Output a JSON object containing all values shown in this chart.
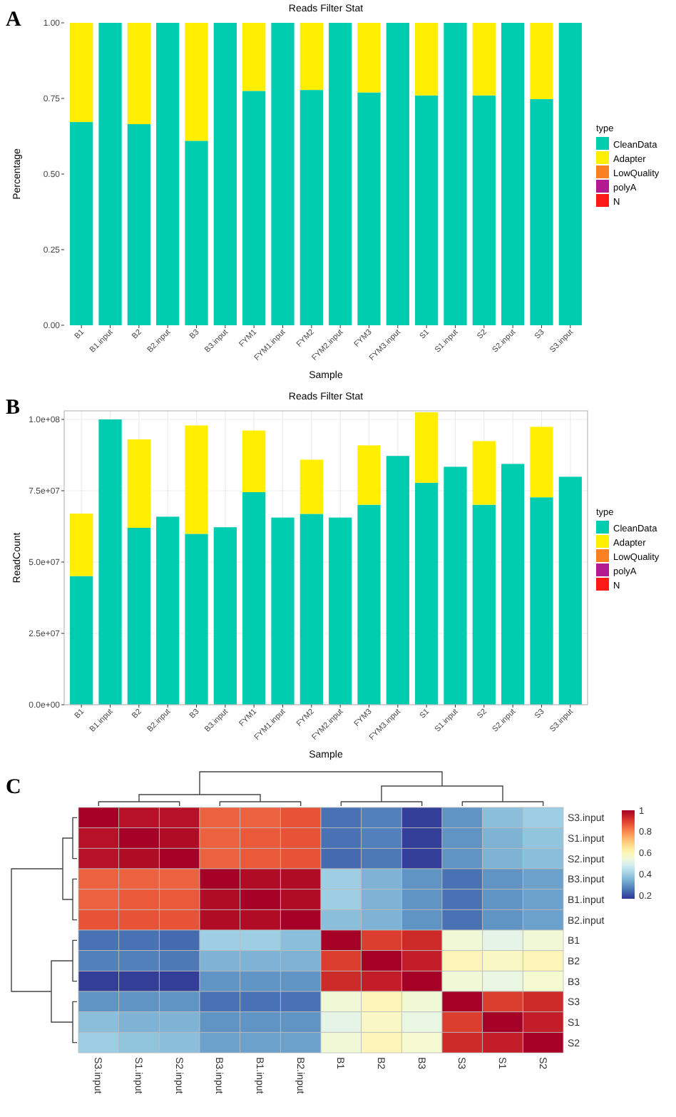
{
  "chart_data": [
    {
      "type": "bar",
      "stacked": true,
      "title": "Reads Filter Stat",
      "xlabel": "Sample",
      "ylabel": "Percentage",
      "legend_title": "type",
      "legend": "right",
      "annotations": [
        "A"
      ],
      "categories": [
        "B1",
        "B1.input",
        "B2",
        "B2.input",
        "B3",
        "B3.input",
        "FYM1",
        "FYM1.input",
        "FYM2",
        "FYM2.input",
        "FYM3",
        "FYM3.input",
        "S1",
        "S1.input",
        "S2",
        "S2.input",
        "S3",
        "S3.input"
      ],
      "ylim": [
        0,
        1
      ],
      "yticks": [
        {
          "value": 0,
          "label": "0.00"
        },
        {
          "value": 0.25,
          "label": "0.25"
        },
        {
          "value": 0.5,
          "label": "0.50"
        },
        {
          "value": 0.75,
          "label": "0.75"
        },
        {
          "value": 1,
          "label": "1.00"
        }
      ],
      "grid": false,
      "series": [
        {
          "name": "CleanData",
          "color": "#00cdb0",
          "values": [
            0.672,
            1,
            0.665,
            1,
            0.61,
            1,
            0.775,
            1,
            0.778,
            1,
            0.77,
            1,
            0.76,
            1,
            0.76,
            1,
            0.748,
            1
          ]
        },
        {
          "name": "Adapter",
          "color": "#ffee00",
          "values": [
            0.328,
            0,
            0.335,
            0,
            0.39,
            0,
            0.225,
            0,
            0.222,
            0,
            0.23,
            0,
            0.24,
            0,
            0.24,
            0,
            0.252,
            0
          ]
        },
        {
          "name": "LowQuality",
          "color": "#fb8022",
          "values": [
            0,
            0,
            0,
            0,
            0,
            0,
            0,
            0,
            0,
            0,
            0,
            0,
            0,
            0,
            0,
            0,
            0,
            0
          ]
        },
        {
          "name": "polyA",
          "color": "#b5198f",
          "values": [
            0,
            0,
            0,
            0,
            0,
            0,
            0,
            0,
            0,
            0,
            0,
            0,
            0,
            0,
            0,
            0,
            0,
            0
          ]
        },
        {
          "name": "N",
          "color": "#ff1a1a",
          "values": [
            0,
            0,
            0,
            0,
            0,
            0,
            0,
            0,
            0,
            0,
            0,
            0,
            0,
            0,
            0,
            0,
            0,
            0
          ]
        }
      ]
    },
    {
      "type": "bar",
      "stacked": true,
      "title": "Reads Filter Stat",
      "xlabel": "Sample",
      "ylabel": "ReadCount",
      "legend_title": "type",
      "legend": "right",
      "annotations": [
        "B"
      ],
      "categories": [
        "B1",
        "B1.input",
        "B2",
        "B2.input",
        "B3",
        "B3.input",
        "FYM1",
        "FYM1.input",
        "FYM2",
        "FYM2.input",
        "FYM3",
        "FYM3.input",
        "S1",
        "S1.input",
        "S2",
        "S2.input",
        "S3",
        "S3.input"
      ],
      "ylim": [
        0,
        103000000
      ],
      "yticks": [
        {
          "value": 0,
          "label": "0.0e+00"
        },
        {
          "value": 25000000,
          "label": "2.5e+07"
        },
        {
          "value": 50000000,
          "label": "5.0e+07"
        },
        {
          "value": 75000000,
          "label": "7.5e+07"
        },
        {
          "value": 100000000,
          "label": "1.0e+08"
        }
      ],
      "grid": true,
      "series": [
        {
          "name": "CleanData",
          "color": "#00cdb0",
          "values": [
            45100000,
            100000000,
            62000000,
            65900000,
            59900000,
            62200000,
            74500000,
            65600000,
            66900000,
            65600000,
            70100000,
            87200000,
            77800000,
            83400000,
            70100000,
            84400000,
            72700000,
            79900000
          ]
        },
        {
          "name": "Adapter",
          "color": "#ffee00",
          "values": [
            21900000,
            0,
            31000000,
            0,
            38000000,
            0,
            21600000,
            0,
            19000000,
            0,
            20800000,
            0,
            24700000,
            0,
            22300000,
            0,
            24700000,
            0
          ]
        },
        {
          "name": "LowQuality",
          "color": "#fb8022",
          "values": [
            0,
            0,
            0,
            0,
            0,
            0,
            0,
            0,
            0,
            0,
            0,
            0,
            0,
            0,
            0,
            0,
            0,
            0
          ]
        },
        {
          "name": "polyA",
          "color": "#b5198f",
          "values": [
            0,
            0,
            0,
            0,
            0,
            0,
            0,
            0,
            0,
            0,
            0,
            0,
            0,
            0,
            0,
            0,
            0,
            0
          ]
        },
        {
          "name": "N",
          "color": "#ff1a1a",
          "values": [
            0,
            0,
            0,
            0,
            0,
            0,
            0,
            0,
            0,
            0,
            0,
            0,
            0,
            0,
            0,
            0,
            0,
            0
          ]
        }
      ]
    },
    {
      "type": "heatmap",
      "annotations": [
        "C"
      ],
      "categories": [
        "S3.input",
        "S1.input",
        "S2.input",
        "B3.input",
        "B1.input",
        "B2.input",
        "B1",
        "B2",
        "B3",
        "S3",
        "S1",
        "S2"
      ],
      "y_categories": [
        "S3.input",
        "S1.input",
        "S2.input",
        "B3.input",
        "B1.input",
        "B2.input",
        "B1",
        "B2",
        "B3",
        "S3",
        "S1",
        "S2"
      ],
      "clim": [
        0.17,
        1
      ],
      "cticks": [
        {
          "value": 0.2,
          "label": "0.2"
        },
        {
          "value": 0.4,
          "label": "0.4"
        },
        {
          "value": 0.6,
          "label": "0.6"
        },
        {
          "value": 0.8,
          "label": "0.8"
        },
        1
      ],
      "cells": [
        [
          1,
          0.97,
          0.97,
          0.85,
          0.85,
          0.87,
          0.25,
          0.27,
          0.18,
          0.3,
          0.37,
          0.4
        ],
        [
          0.97,
          1,
          0.98,
          0.85,
          0.86,
          0.87,
          0.25,
          0.27,
          0.18,
          0.3,
          0.35,
          0.38
        ],
        [
          0.97,
          0.98,
          1,
          0.85,
          0.86,
          0.87,
          0.24,
          0.26,
          0.18,
          0.3,
          0.35,
          0.37
        ],
        [
          0.85,
          0.85,
          0.85,
          1,
          0.98,
          0.98,
          0.4,
          0.35,
          0.3,
          0.25,
          0.3,
          0.32
        ],
        [
          0.85,
          0.86,
          0.86,
          0.98,
          1,
          0.98,
          0.4,
          0.35,
          0.3,
          0.25,
          0.3,
          0.32
        ],
        [
          0.87,
          0.87,
          0.87,
          0.98,
          0.98,
          1,
          0.37,
          0.35,
          0.3,
          0.25,
          0.3,
          0.32
        ],
        [
          0.25,
          0.25,
          0.24,
          0.4,
          0.4,
          0.37,
          1,
          0.9,
          0.93,
          0.55,
          0.52,
          0.55
        ],
        [
          0.27,
          0.27,
          0.26,
          0.35,
          0.35,
          0.35,
          0.9,
          1,
          0.95,
          0.6,
          0.58,
          0.6
        ],
        [
          0.18,
          0.18,
          0.18,
          0.3,
          0.3,
          0.3,
          0.93,
          0.95,
          1,
          0.55,
          0.53,
          0.56
        ],
        [
          0.3,
          0.3,
          0.3,
          0.25,
          0.25,
          0.25,
          0.55,
          0.6,
          0.55,
          1,
          0.9,
          0.93
        ],
        [
          0.37,
          0.35,
          0.35,
          0.3,
          0.3,
          0.3,
          0.52,
          0.58,
          0.53,
          0.9,
          1,
          0.95
        ],
        [
          0.4,
          0.38,
          0.37,
          0.32,
          0.32,
          0.32,
          0.55,
          0.6,
          0.56,
          0.93,
          0.95,
          1
        ]
      ]
    }
  ]
}
